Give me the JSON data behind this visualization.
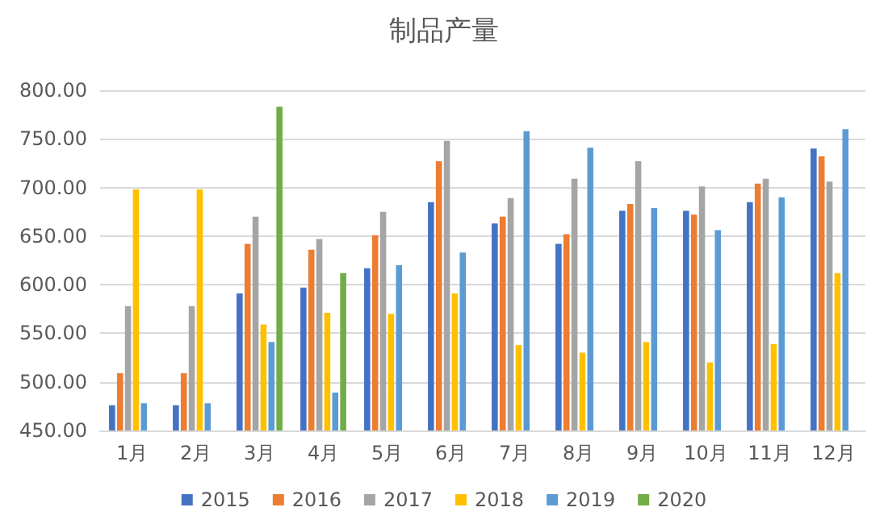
{
  "chart_data": {
    "type": "bar",
    "title": "制品产量",
    "categories": [
      "1月",
      "2月",
      "3月",
      "4月",
      "5月",
      "6月",
      "7月",
      "8月",
      "9月",
      "10月",
      "11月",
      "12月"
    ],
    "series": [
      {
        "name": "2015",
        "color": "#4472c4",
        "values": [
          476,
          476,
          591,
          597,
          617,
          685,
          663,
          642,
          676,
          676,
          685,
          740
        ]
      },
      {
        "name": "2016",
        "color": "#ed7d31",
        "values": [
          509,
          509,
          642,
          636,
          651,
          727,
          670,
          652,
          683,
          672,
          704,
          732
        ]
      },
      {
        "name": "2017",
        "color": "#a5a5a5",
        "values": [
          578,
          578,
          670,
          647,
          675,
          748,
          689,
          709,
          727,
          701,
          709,
          706
        ]
      },
      {
        "name": "2018",
        "color": "#ffc000",
        "values": [
          698,
          698,
          559,
          571,
          570,
          591,
          538,
          530,
          541,
          520,
          539,
          612
        ]
      },
      {
        "name": "2019",
        "color": "#5b9bd5",
        "values": [
          478,
          478,
          541,
          489,
          620,
          633,
          758,
          741,
          679,
          656,
          690,
          760
        ]
      },
      {
        "name": "2020",
        "color": "#70ad47",
        "values": [
          null,
          null,
          783,
          612,
          null,
          null,
          null,
          null,
          null,
          null,
          null,
          null
        ]
      }
    ],
    "ylim": [
      450,
      800
    ],
    "yticks": [
      {
        "value": 450,
        "label": "450.00"
      },
      {
        "value": 500,
        "label": "500.00"
      },
      {
        "value": 550,
        "label": "550.00"
      },
      {
        "value": 600,
        "label": "600.00"
      },
      {
        "value": 650,
        "label": "650.00"
      },
      {
        "value": 700,
        "label": "700.00"
      },
      {
        "value": 750,
        "label": "750.00"
      },
      {
        "value": 800,
        "label": "800.00"
      }
    ],
    "grid": "y",
    "legend": "bottom"
  }
}
